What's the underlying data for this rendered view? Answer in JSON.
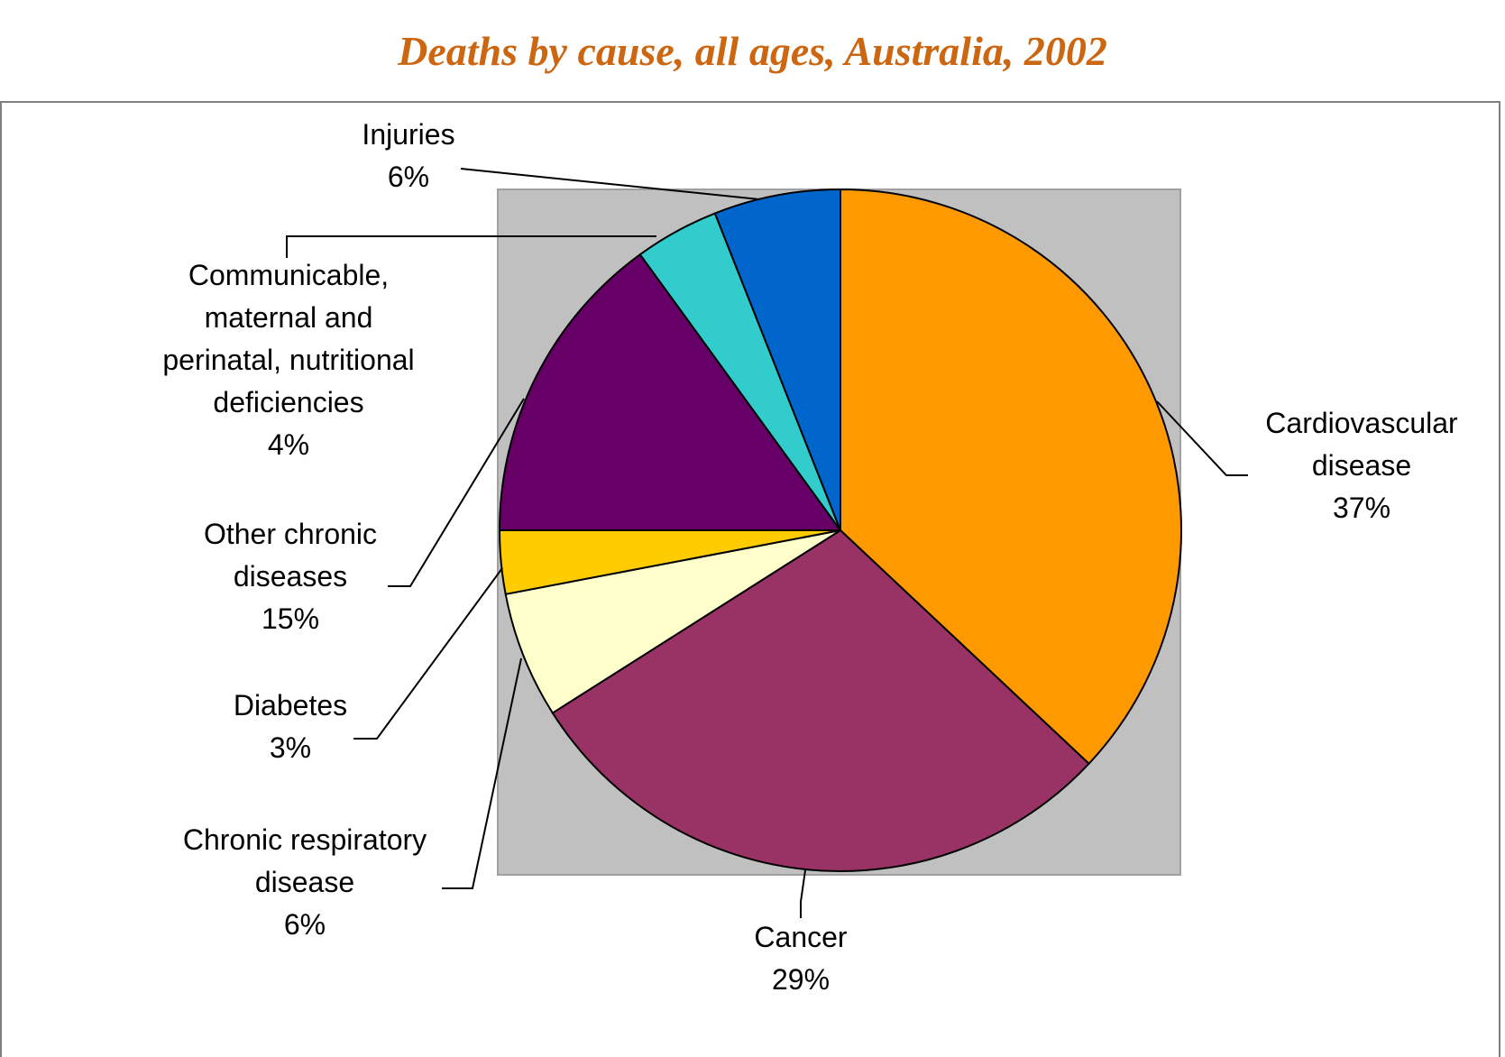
{
  "chart_data": {
    "type": "pie",
    "title": "Deaths by cause, all ages, Australia, 2002",
    "slices": [
      {
        "label": "Cardiovascular disease",
        "lines": [
          "Cardiovascular",
          "disease"
        ],
        "value": 37,
        "pct_label": "37%",
        "color": "#ff9900"
      },
      {
        "label": "Cancer",
        "lines": [
          "Cancer"
        ],
        "value": 29,
        "pct_label": "29%",
        "color": "#993366"
      },
      {
        "label": "Chronic respiratory disease",
        "lines": [
          "Chronic respiratory",
          "disease"
        ],
        "value": 6,
        "pct_label": "6%",
        "color": "#ffffcc"
      },
      {
        "label": "Diabetes",
        "lines": [
          "Diabetes"
        ],
        "value": 3,
        "pct_label": "3%",
        "color": "#ffcc00"
      },
      {
        "label": "Other chronic diseases",
        "lines": [
          "Other chronic",
          "diseases"
        ],
        "value": 15,
        "pct_label": "15%",
        "color": "#660066"
      },
      {
        "label": "Communicable, maternal and perinatal, nutritional deficiencies",
        "lines": [
          "Communicable,",
          "maternal and",
          "perinatal, nutritional",
          "deficiencies"
        ],
        "value": 4,
        "pct_label": "4%",
        "color": "#33cccc"
      },
      {
        "label": "Injuries",
        "lines": [
          "Injuries"
        ],
        "value": 6,
        "pct_label": "6%",
        "color": "#0066cc"
      }
    ],
    "plot_area_color": "#c0c0c0",
    "legend": "none"
  }
}
